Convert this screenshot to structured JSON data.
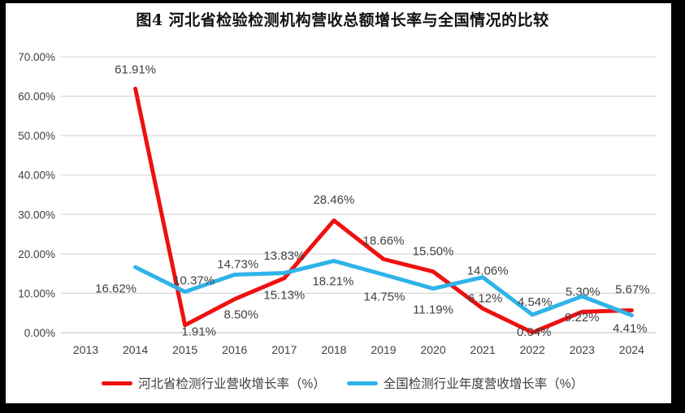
{
  "title": "图4 河北省检验检测机构营收总额增长率与全国情况的比较",
  "colors": {
    "frame": "#000000",
    "background": "#ffffff",
    "grid": "#dadada",
    "axis_line": "#c9c9c9",
    "text": "#404040",
    "title_text": "#111111",
    "hebei_red": "#ee1111",
    "national_blue": "#2fb3e8"
  },
  "chart_data": {
    "type": "line",
    "title": "图4 河北省检验检测机构营收总额增长率与全国情况的比较",
    "xlabel": "",
    "ylabel": "",
    "ylim": [
      0,
      70
    ],
    "grid": true,
    "legend_position": "bottom",
    "categories": [
      "2013",
      "2014",
      "2015",
      "2016",
      "2017",
      "2018",
      "2019",
      "2020",
      "2021",
      "2022",
      "2023",
      "2024"
    ],
    "y_axis": {
      "tick_values": [
        70,
        60,
        50,
        40,
        30,
        20,
        10,
        0
      ],
      "tick_labels": [
        "70.00%",
        "60.00%",
        "50.00%",
        "40.00%",
        "30.00%",
        "20.00%",
        "10.00%",
        "0.00%"
      ]
    },
    "series": [
      {
        "name": "河北省检测行业营收增长率（%）",
        "color": "#ee1111",
        "first_year": "2014",
        "values": [
          61.91,
          1.91,
          8.5,
          13.83,
          28.46,
          18.66,
          15.5,
          6.12,
          0.04,
          5.3,
          5.67
        ],
        "point_labels": [
          "61.91%",
          "1.91%",
          "8.50%",
          "13.83%",
          "28.46%",
          "18.66%",
          "15.50%",
          "6.12%",
          "0.04%",
          "5.30%",
          "5.67%"
        ],
        "label_offsets": [
          [
            0,
            -24
          ],
          [
            17,
            8
          ],
          [
            8,
            19
          ],
          [
            0,
            -28
          ],
          [
            0,
            -26
          ],
          [
            0,
            -23
          ],
          [
            0,
            -25
          ],
          [
            3,
            -13
          ],
          [
            2,
            -1
          ],
          [
            1,
            -25
          ],
          [
            1,
            -26
          ]
        ]
      },
      {
        "name": "全国检测行业年度营收增长率（%）",
        "color": "#2fb3e8",
        "first_year": "2014",
        "values": [
          16.62,
          10.37,
          14.73,
          15.13,
          18.21,
          14.75,
          11.19,
          14.06,
          4.54,
          9.22,
          4.41
        ],
        "point_labels": [
          "16.62%",
          "10.37%",
          "14.73%",
          "15.13%",
          "18.21%",
          "14.75%",
          "11.19%",
          "14.06%",
          "4.54%",
          "9.22%",
          "4.41%"
        ],
        "label_offsets": [
          [
            -24,
            26
          ],
          [
            11,
            -14
          ],
          [
            4,
            -13
          ],
          [
            0,
            27
          ],
          [
            -1,
            25
          ],
          [
            1,
            27
          ],
          [
            0,
            26
          ],
          [
            6,
            -8
          ],
          [
            3,
            -16
          ],
          [
            0,
            26
          ],
          [
            -2,
            16
          ]
        ]
      }
    ]
  },
  "legend": {
    "items": [
      {
        "label": "河北省检测行业营收增长率（%）",
        "color": "#ee1111"
      },
      {
        "label": "全国检测行业年度营收增长率（%）",
        "color": "#2fb3e8"
      }
    ]
  }
}
